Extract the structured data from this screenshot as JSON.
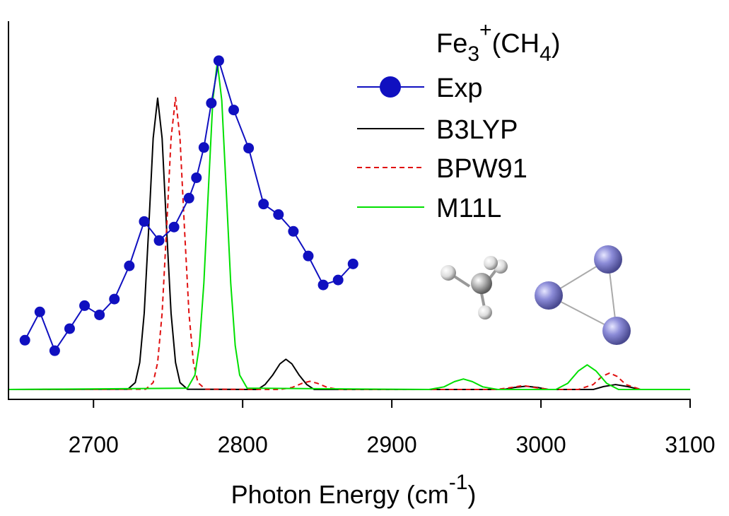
{
  "chart_data": {
    "type": "line",
    "xlabel": [
      "Photon Energy (cm",
      "-1",
      ")"
    ],
    "legend_title": [
      "Fe",
      "3",
      "+",
      "(CH",
      "4",
      ")"
    ],
    "xlim": [
      2643,
      3100
    ],
    "ylim": [
      -0.03,
      1.12
    ],
    "xticks": [
      2700,
      2800,
      2900,
      3000,
      3100
    ],
    "grid": false,
    "legend": "upper right",
    "series": [
      {
        "name": "Exp",
        "color": "#1010c0",
        "style": "solid-markers",
        "x": [
          2654,
          2664,
          2674,
          2684,
          2694,
          2704,
          2714,
          2724,
          2734,
          2744,
          2754,
          2764,
          2769,
          2774,
          2779,
          2784,
          2794,
          2804,
          2814,
          2824,
          2834,
          2844,
          2854,
          2864,
          2874
        ],
        "values": [
          0.15,
          0.236,
          0.118,
          0.185,
          0.255,
          0.227,
          0.275,
          0.376,
          0.511,
          0.453,
          0.494,
          0.582,
          0.644,
          0.736,
          0.871,
          1.0,
          0.85,
          0.734,
          0.564,
          0.532,
          0.481,
          0.406,
          0.318,
          0.333,
          0.382
        ]
      },
      {
        "name": "B3LYP",
        "color": "#000000",
        "style": "solid",
        "x": [
          2643,
          2723,
          2728,
          2731,
          2734,
          2737,
          2740,
          2743,
          2746,
          2749,
          2752,
          2755,
          2758,
          2763,
          2810,
          2815,
          2820,
          2825,
          2829,
          2833,
          2838,
          2843,
          2848,
          2975,
          2982,
          2990,
          2998,
          3005,
          3035,
          3042,
          3050,
          3058,
          3067,
          3100
        ],
        "values": [
          0,
          0.001,
          0.021,
          0.082,
          0.232,
          0.489,
          0.764,
          0.886,
          0.764,
          0.489,
          0.232,
          0.082,
          0.021,
          0.001,
          0,
          0.015,
          0.043,
          0.078,
          0.092,
          0.078,
          0.043,
          0.015,
          0,
          0,
          0.006,
          0.01,
          0.006,
          0,
          0,
          0.009,
          0.015,
          0.009,
          0,
          0
        ]
      },
      {
        "name": "BPW91",
        "color": "#e01010",
        "style": "dashed",
        "x": [
          2643,
          2735,
          2740,
          2743,
          2746,
          2749,
          2752,
          2755,
          2758,
          2761,
          2764,
          2767,
          2770,
          2775,
          2825,
          2833,
          2840,
          2845,
          2850,
          2857,
          2865,
          2970,
          2980,
          2988,
          2996,
          3006,
          3025,
          3035,
          3041,
          3046,
          3051,
          3057,
          3067,
          3100
        ],
        "values": [
          0,
          0.001,
          0.021,
          0.082,
          0.232,
          0.489,
          0.764,
          0.888,
          0.764,
          0.489,
          0.232,
          0.082,
          0.021,
          0.001,
          0,
          0.006,
          0.019,
          0.025,
          0.019,
          0.006,
          0,
          0,
          0.006,
          0.012,
          0.006,
          0,
          0,
          0.015,
          0.04,
          0.05,
          0.04,
          0.015,
          0,
          0
        ]
      },
      {
        "name": "M11L",
        "color": "#00e000",
        "style": "solid",
        "x": [
          2643,
          2763,
          2768,
          2771,
          2774,
          2777,
          2780,
          2783,
          2786,
          2789,
          2792,
          2795,
          2798,
          2803,
          2925,
          2935,
          2942,
          2948,
          2954,
          2961,
          2971,
          3010,
          3018,
          3025,
          3031,
          3037,
          3044,
          3052,
          3100
        ],
        "values": [
          0,
          0.004,
          0.044,
          0.134,
          0.324,
          0.605,
          0.879,
          0.996,
          0.879,
          0.605,
          0.324,
          0.134,
          0.044,
          0.004,
          0,
          0.008,
          0.024,
          0.032,
          0.024,
          0.008,
          0,
          0,
          0.019,
          0.056,
          0.075,
          0.056,
          0.019,
          0,
          0
        ]
      }
    ]
  }
}
